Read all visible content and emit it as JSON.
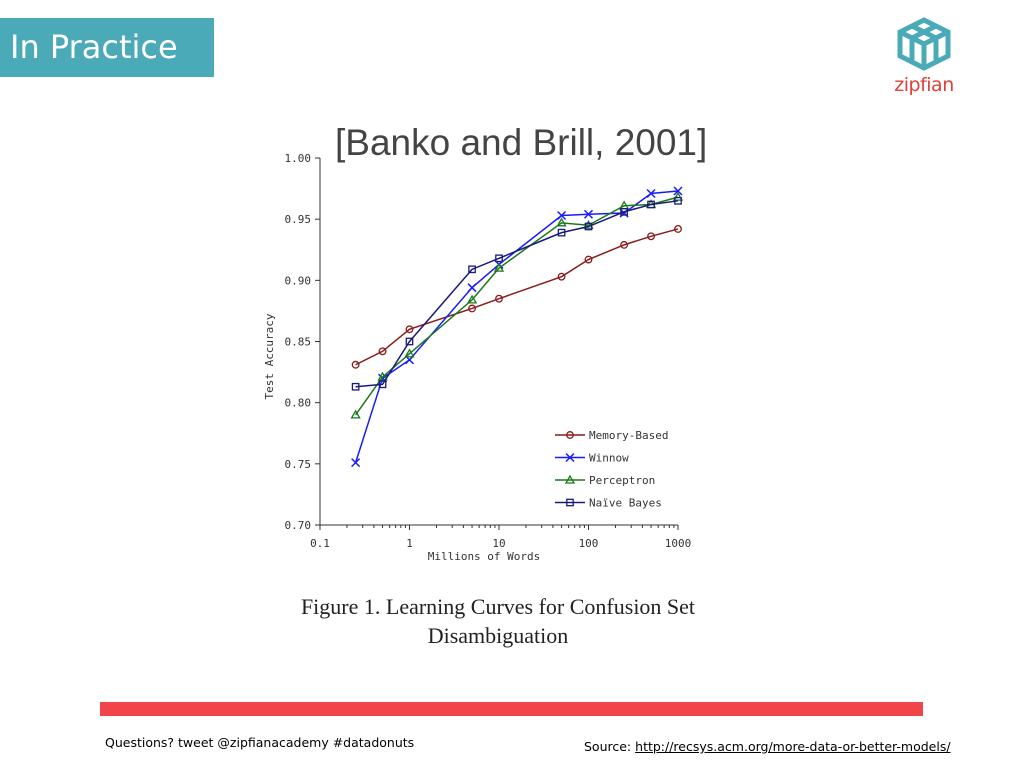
{
  "slide": {
    "title": "In Practice",
    "logo_text": "zipfian",
    "footer_left": "Questions? tweet @zipfianacademy #datadonuts",
    "footer_source_label": "Source:",
    "footer_source_link": "http://recsys.acm.org/more-data-or-better-models/",
    "caption_line1": "Figure 1. Learning Curves for Confusion Set",
    "caption_line2": "Disambiguation",
    "colors": {
      "banner": "#4aaab8",
      "accent_bar": "#f2454a",
      "logo": "#4aaab8",
      "logo_text": "#e0403a"
    }
  },
  "chart_data": {
    "type": "line",
    "title": "[Banko and Brill, 2001]",
    "xlabel": "Millions of Words",
    "ylabel": "Test Accuracy",
    "xscale": "log",
    "xlim": [
      0.1,
      1000
    ],
    "ylim": [
      0.7,
      1.0
    ],
    "xticks": [
      0.1,
      1,
      10,
      100,
      1000
    ],
    "xtick_labels": [
      "0.1",
      "1",
      "10",
      "100",
      "1000"
    ],
    "yticks": [
      0.7,
      0.75,
      0.8,
      0.85,
      0.9,
      0.95,
      1.0
    ],
    "ytick_labels": [
      "0.70",
      "0.75",
      "0.80",
      "0.85",
      "0.90",
      "0.95",
      "1.00"
    ],
    "grid": false,
    "legend_position": "bottom-right",
    "x": [
      0.25,
      0.5,
      1,
      5,
      10,
      50,
      100,
      250,
      500,
      1000
    ],
    "series": [
      {
        "name": "Memory-Based",
        "color": "#8b1a1a",
        "marker": "circle",
        "values": [
          0.831,
          0.842,
          0.86,
          0.877,
          0.885,
          0.903,
          0.917,
          0.929,
          0.936,
          0.942
        ]
      },
      {
        "name": "Winnow",
        "color": "#1a1aff",
        "marker": "x",
        "values": [
          0.751,
          0.82,
          0.835,
          0.894,
          0.913,
          0.953,
          0.954,
          0.955,
          0.971,
          0.973
        ]
      },
      {
        "name": "Perceptron",
        "color": "#1a7a1a",
        "marker": "triangle",
        "values": [
          0.79,
          0.821,
          0.84,
          0.884,
          0.91,
          0.947,
          0.945,
          0.961,
          0.962,
          0.968
        ]
      },
      {
        "name": "Naïve Bayes",
        "color": "#1a1a7a",
        "marker": "square",
        "values": [
          0.813,
          0.815,
          0.85,
          0.909,
          0.918,
          0.939,
          0.944,
          0.956,
          0.962,
          0.965
        ]
      }
    ]
  }
}
